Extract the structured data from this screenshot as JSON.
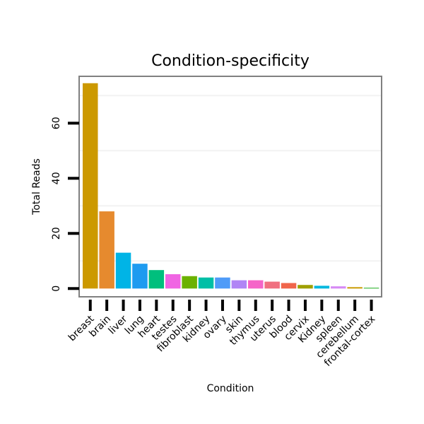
{
  "chart_data": {
    "type": "bar",
    "title": "Condition-specificity",
    "xlabel": "Condition",
    "ylabel": "Total Reads",
    "ylim": [
      -3,
      77
    ],
    "yticks": [
      0,
      20,
      40,
      60
    ],
    "grid": true,
    "legend": "none",
    "categories": [
      "breast",
      "brain",
      "liver",
      "lung",
      "heart",
      "testes",
      "fibroblast",
      "kidney",
      "ovary",
      "skin",
      "thymus",
      "uterus",
      "blood",
      "cervix",
      "Kidney",
      "spleen",
      "cerebellum",
      "frontal-cortex"
    ],
    "values": [
      74.5,
      28,
      13,
      9,
      6.7,
      5.2,
      4.5,
      4,
      4,
      3,
      3,
      2.5,
      2,
      1.3,
      1,
      0.8,
      0.5,
      0.3
    ],
    "colors": [
      "#CC9900",
      "#E68A2E",
      "#00B4E6",
      "#1E9BF0",
      "#00BF7D",
      "#F065E3",
      "#6BB100",
      "#00BFA6",
      "#4F9BF8",
      "#B085F5",
      "#F564C8",
      "#F07080",
      "#F0654B",
      "#9FA000",
      "#00B8DE",
      "#D68AF5",
      "#C99A00",
      "#3DB83D"
    ]
  }
}
